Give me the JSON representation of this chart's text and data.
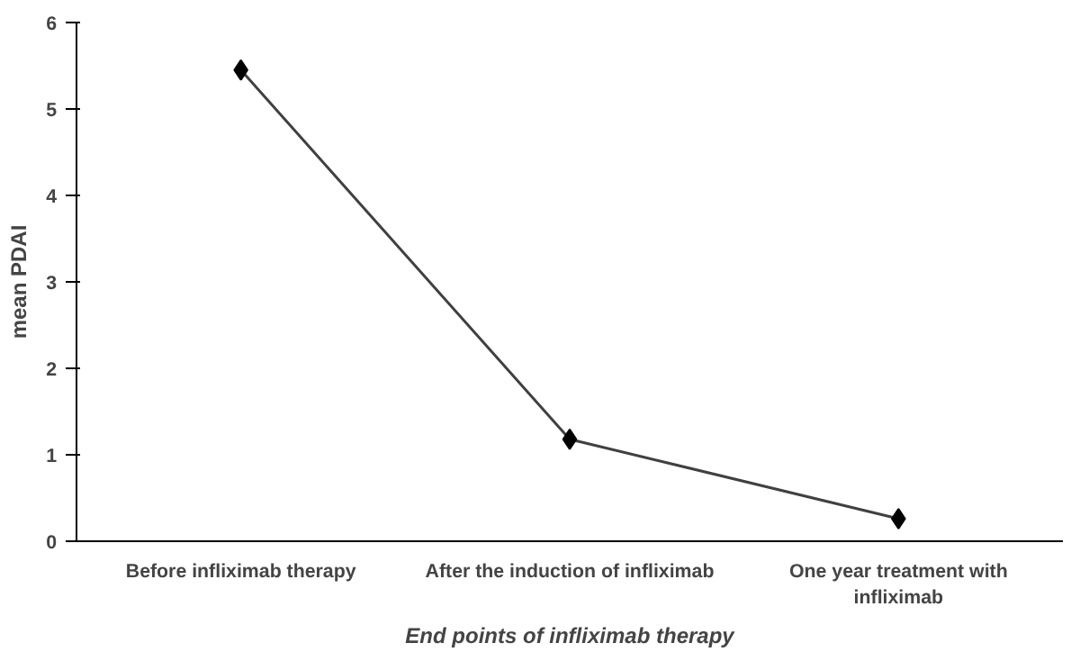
{
  "chart_data": {
    "type": "line",
    "xlabel": "End points of infliximab therapy",
    "ylabel": "mean PDAI",
    "categories": [
      "Before infliximab therapy",
      "After the induction of infliximab",
      "One year treatment with\ninfliximab"
    ],
    "series": [
      {
        "color": "#000000",
        "values": [
          5.45,
          1.18,
          0.26
        ]
      }
    ],
    "ylim": [
      0,
      6
    ],
    "yticks": [
      0,
      1,
      2,
      3,
      4,
      5,
      6
    ],
    "grid": false,
    "marker": "diamond",
    "line_style": "solid"
  }
}
